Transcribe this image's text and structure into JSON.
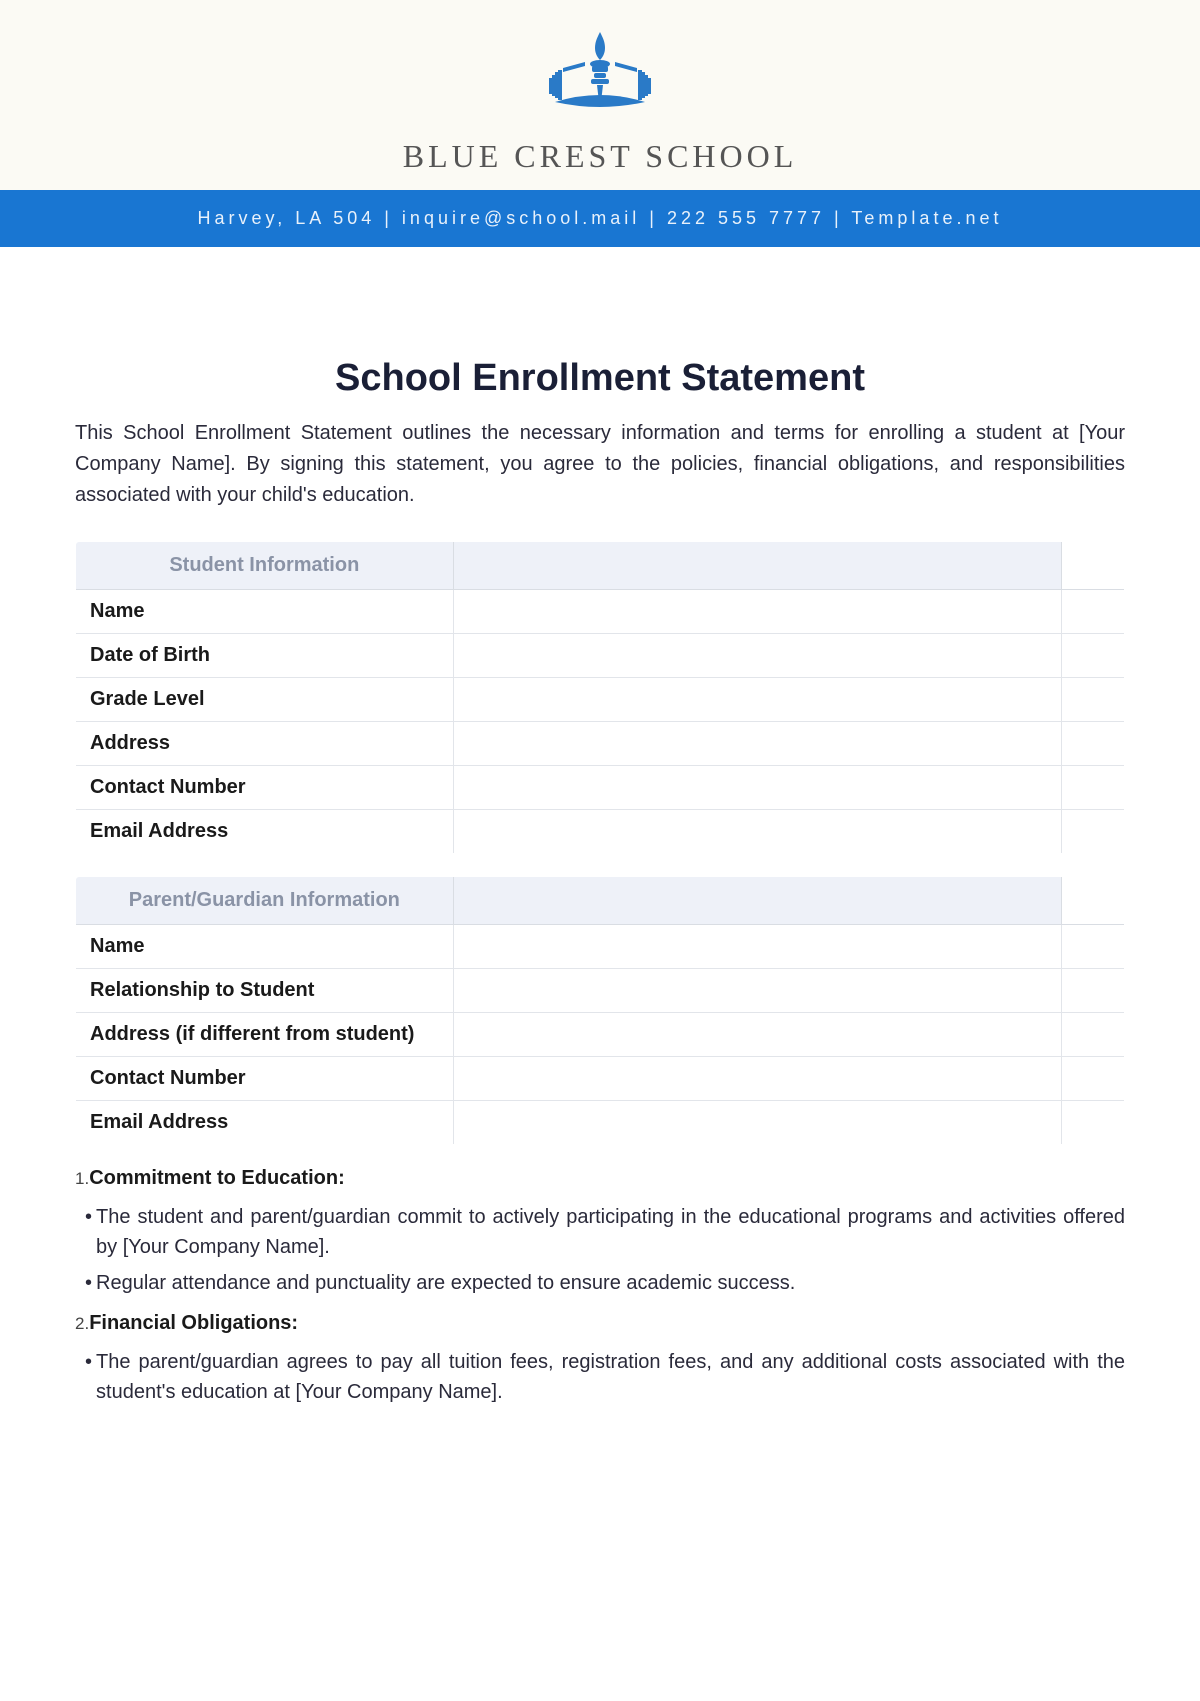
{
  "header": {
    "school_name": "BLUE CREST SCHOOL",
    "contact_line": "Harvey, LA 504 | inquire@school.mail | 222 555 7777 | Template.net",
    "logo_color": "#2a7ac7",
    "bar_bg": "#1976d2",
    "header_bg": "#fbfaf4"
  },
  "document": {
    "title": "School Enrollment Statement",
    "intro": "This School Enrollment Statement outlines the necessary information and terms for enrolling a student at [Your Company Name]. By signing this statement, you agree to the policies, financial obligations, and responsibilities associated with your child's education."
  },
  "student_table": {
    "header": "Student Information",
    "rows": [
      {
        "label": "Name",
        "value": ""
      },
      {
        "label": "Date of Birth",
        "value": ""
      },
      {
        "label": "Grade Level",
        "value": ""
      },
      {
        "label": "Address",
        "value": ""
      },
      {
        "label": "Contact Number",
        "value": ""
      },
      {
        "label": "Email Address",
        "value": ""
      }
    ]
  },
  "guardian_table": {
    "header": "Parent/Guardian Information",
    "rows": [
      {
        "label": "Name",
        "value": ""
      },
      {
        "label": "Relationship to Student",
        "value": ""
      },
      {
        "label": "Address (if different from student)",
        "value": ""
      },
      {
        "label": "Contact Number",
        "value": ""
      },
      {
        "label": "Email Address",
        "value": ""
      }
    ]
  },
  "terms": [
    {
      "num": "1.",
      "title": "Commitment to Education:",
      "bullets": [
        "The student and parent/guardian commit to actively participating in the educational programs and activities offered by [Your Company Name].",
        "Regular attendance and punctuality are expected to ensure academic success."
      ]
    },
    {
      "num": "2.",
      "title": "Financial Obligations:",
      "bullets": [
        "The parent/guardian agrees to pay all tuition fees, registration fees, and any additional costs associated with the student's education at [Your Company Name]."
      ]
    }
  ]
}
